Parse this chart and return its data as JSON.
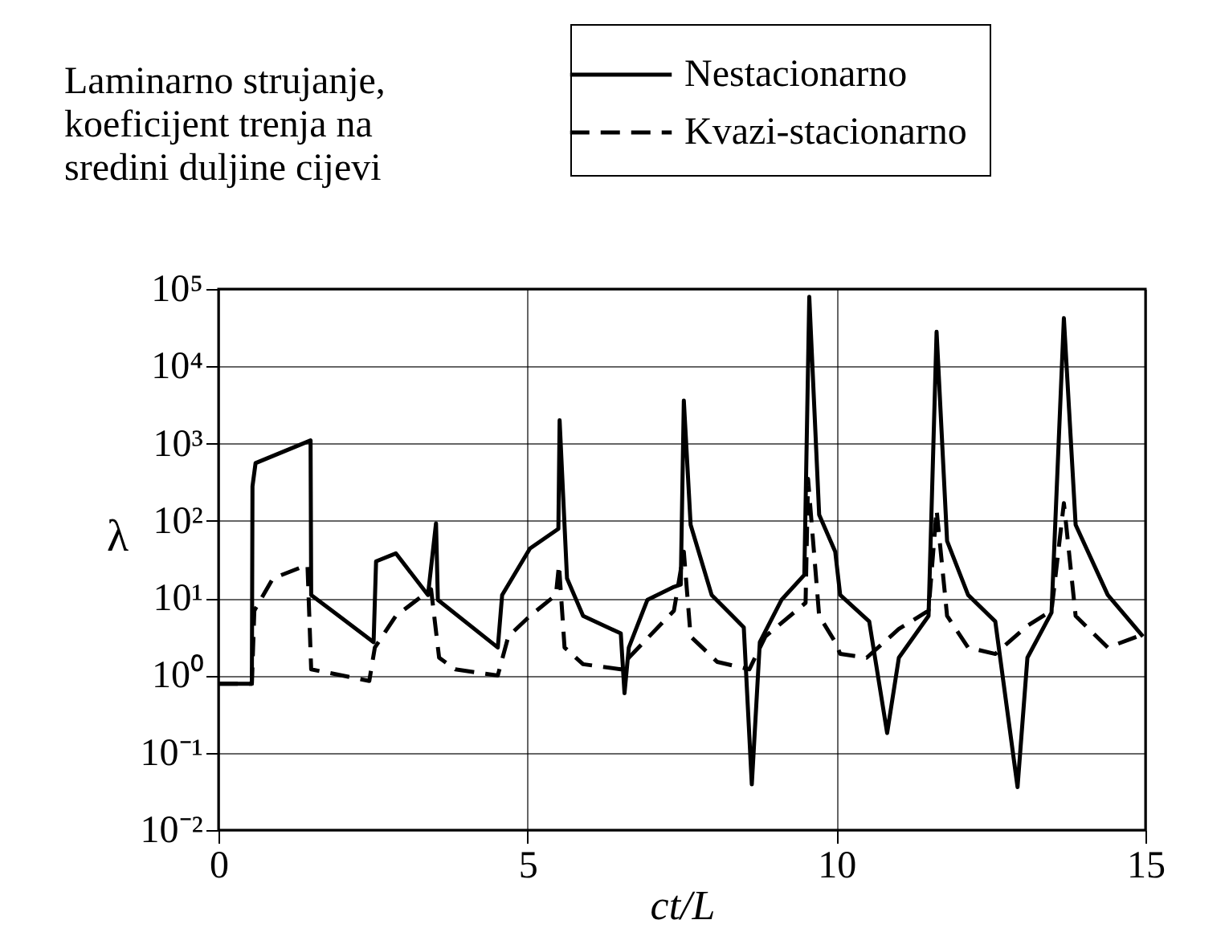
{
  "chart_data": {
    "type": "line",
    "title": "Laminarno strujanje,\nkoeficijent trenja na\nsredini duljine cijevi",
    "xlabel": "ct/L",
    "ylabel": "λ",
    "log": "y",
    "grid": true,
    "legend": "top right",
    "xlim": [
      0,
      15
    ],
    "xticks": [
      0,
      5,
      10,
      15
    ],
    "ylim": [
      0.01,
      100000
    ],
    "yticks": [
      {
        "value": 0.01,
        "label": "10⁻²"
      },
      {
        "value": 0.1,
        "label": "10⁻¹"
      },
      {
        "value": 1,
        "label": "10⁰"
      },
      {
        "value": 10,
        "label": "10¹"
      },
      {
        "value": 100,
        "label": "10²"
      },
      {
        "value": 1000,
        "label": "10³"
      },
      {
        "value": 10000,
        "label": "10⁴"
      },
      {
        "value": 100000,
        "label": "10⁵"
      }
    ],
    "series": [
      {
        "name": "Nestacionarno",
        "color": "#000000",
        "line_style": "solid",
        "x": [
          0,
          0.54,
          0.55,
          0.6,
          1.49,
          1.5,
          2.51,
          2.55,
          2.87,
          3.39,
          3.52,
          3.55,
          4.52,
          4.59,
          5.04,
          5.5,
          5.52,
          5.64,
          5.9,
          6.51,
          6.57,
          6.64,
          6.94,
          7.37,
          7.48,
          7.53,
          7.64,
          7.98,
          8.5,
          8.63,
          8.76,
          9.11,
          9.48,
          9.56,
          9.72,
          9.98,
          10.06,
          10.53,
          10.82,
          11.01,
          11.49,
          11.62,
          11.79,
          12.13,
          12.57,
          12.93,
          13.09,
          13.48,
          13.68,
          13.87,
          14.39,
          14.96
        ],
        "values": [
          0.78,
          0.78,
          280,
          560,
          1100,
          11,
          2.7,
          30,
          38,
          11,
          93,
          9.5,
          2.3,
          11,
          44,
          79,
          2000,
          18,
          5.9,
          3.5,
          0.59,
          2.3,
          9.5,
          14,
          15,
          3600,
          89,
          11,
          4.2,
          0.039,
          2.7,
          9.5,
          20,
          79000,
          120,
          40,
          11,
          5,
          0.18,
          1.7,
          5.9,
          28000,
          55,
          11,
          5,
          0.036,
          1.7,
          6.5,
          42000,
          89,
          11,
          3.2
        ]
      },
      {
        "name": "Kvazi-stacionarno",
        "color": "#000000",
        "line_style": "dashed",
        "x": [
          0,
          0.54,
          0.58,
          0.88,
          1.44,
          1.5,
          2.44,
          2.53,
          2.87,
          3.44,
          3.57,
          3.83,
          4.52,
          4.69,
          5.04,
          5.46,
          5.51,
          5.6,
          5.9,
          6.51,
          6.64,
          7.37,
          7.53,
          7.64,
          8.07,
          8.59,
          8.85,
          9.5,
          9.54,
          9.72,
          9.98,
          10.06,
          10.49,
          11.01,
          11.49,
          11.62,
          11.79,
          12.13,
          12.57,
          13.09,
          13.48,
          13.68,
          13.87,
          14.39,
          14.96
        ],
        "values": [
          0.78,
          0.78,
          6.9,
          18,
          27,
          1.2,
          0.85,
          2.3,
          5.9,
          13,
          1.7,
          1.2,
          1.0,
          3.2,
          5.9,
          11,
          27,
          2.3,
          1.4,
          1.2,
          1.7,
          6.9,
          40,
          3.2,
          1.5,
          1.2,
          3.2,
          8.7,
          350,
          5.9,
          2.7,
          1.9,
          1.7,
          4,
          6.9,
          140,
          5.9,
          2.3,
          1.9,
          4.4,
          6.9,
          170,
          5.9,
          2.3,
          3.4
        ]
      }
    ]
  }
}
